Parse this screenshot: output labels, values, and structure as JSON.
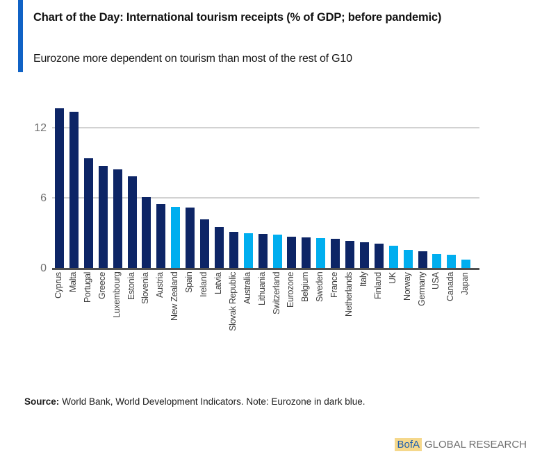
{
  "chart_data": {
    "type": "bar",
    "title": "Chart of the Day: International tourism receipts (% of GDP; before pandemic)",
    "subtitle": "Eurozone more dependent on tourism than most of the rest of G10",
    "categories": [
      "Cyprus",
      "Malta",
      "Portugal",
      "Greece",
      "Luxembourg",
      "Estonia",
      "Slovenia",
      "Austria",
      "New Zealand",
      "Spain",
      "Ireland",
      "Latvia",
      "Slovak Republic",
      "Australia",
      "Lithuania",
      "Switzerland",
      "Eurozone",
      "Belgium",
      "Sweden",
      "France",
      "Netherlands",
      "Italy",
      "Finland",
      "UK",
      "Norway",
      "Germany",
      "USA",
      "Canada",
      "Japan"
    ],
    "values": [
      13.7,
      13.4,
      9.4,
      8.8,
      8.5,
      7.9,
      6.1,
      5.5,
      5.3,
      5.2,
      4.2,
      3.55,
      3.15,
      3.05,
      2.95,
      2.9,
      2.75,
      2.65,
      2.6,
      2.55,
      2.35,
      2.25,
      2.15,
      1.95,
      1.6,
      1.5,
      1.25,
      1.2,
      0.75
    ],
    "groups": [
      "eurozone",
      "eurozone",
      "eurozone",
      "eurozone",
      "eurozone",
      "eurozone",
      "eurozone",
      "eurozone",
      "non_eurozone",
      "eurozone",
      "eurozone",
      "eurozone",
      "eurozone",
      "non_eurozone",
      "eurozone",
      "non_eurozone",
      "eurozone",
      "eurozone",
      "non_eurozone",
      "eurozone",
      "eurozone",
      "eurozone",
      "eurozone",
      "non_eurozone",
      "non_eurozone",
      "eurozone",
      "non_eurozone",
      "non_eurozone",
      "non_eurozone"
    ],
    "colors": {
      "eurozone": "#0D2566",
      "non_eurozone": "#00AEEF"
    },
    "yticks": [
      0,
      6,
      12
    ],
    "ylim": [
      0,
      14.2
    ],
    "xlabel": "",
    "ylabel": "",
    "grid": "horizontal",
    "note": "Eurozone in dark blue"
  },
  "page": {
    "accent_color": "#1062C5"
  },
  "source": {
    "label": "Source:",
    "text": "World Bank, World Development Indicators. Note: Eurozone in dark blue."
  },
  "footer": {
    "brand": "BofA",
    "brand_suffix": "GLOBAL RESEARCH",
    "brand_color": "#1F5FAE",
    "brand_highlight": "#F5D88C"
  }
}
